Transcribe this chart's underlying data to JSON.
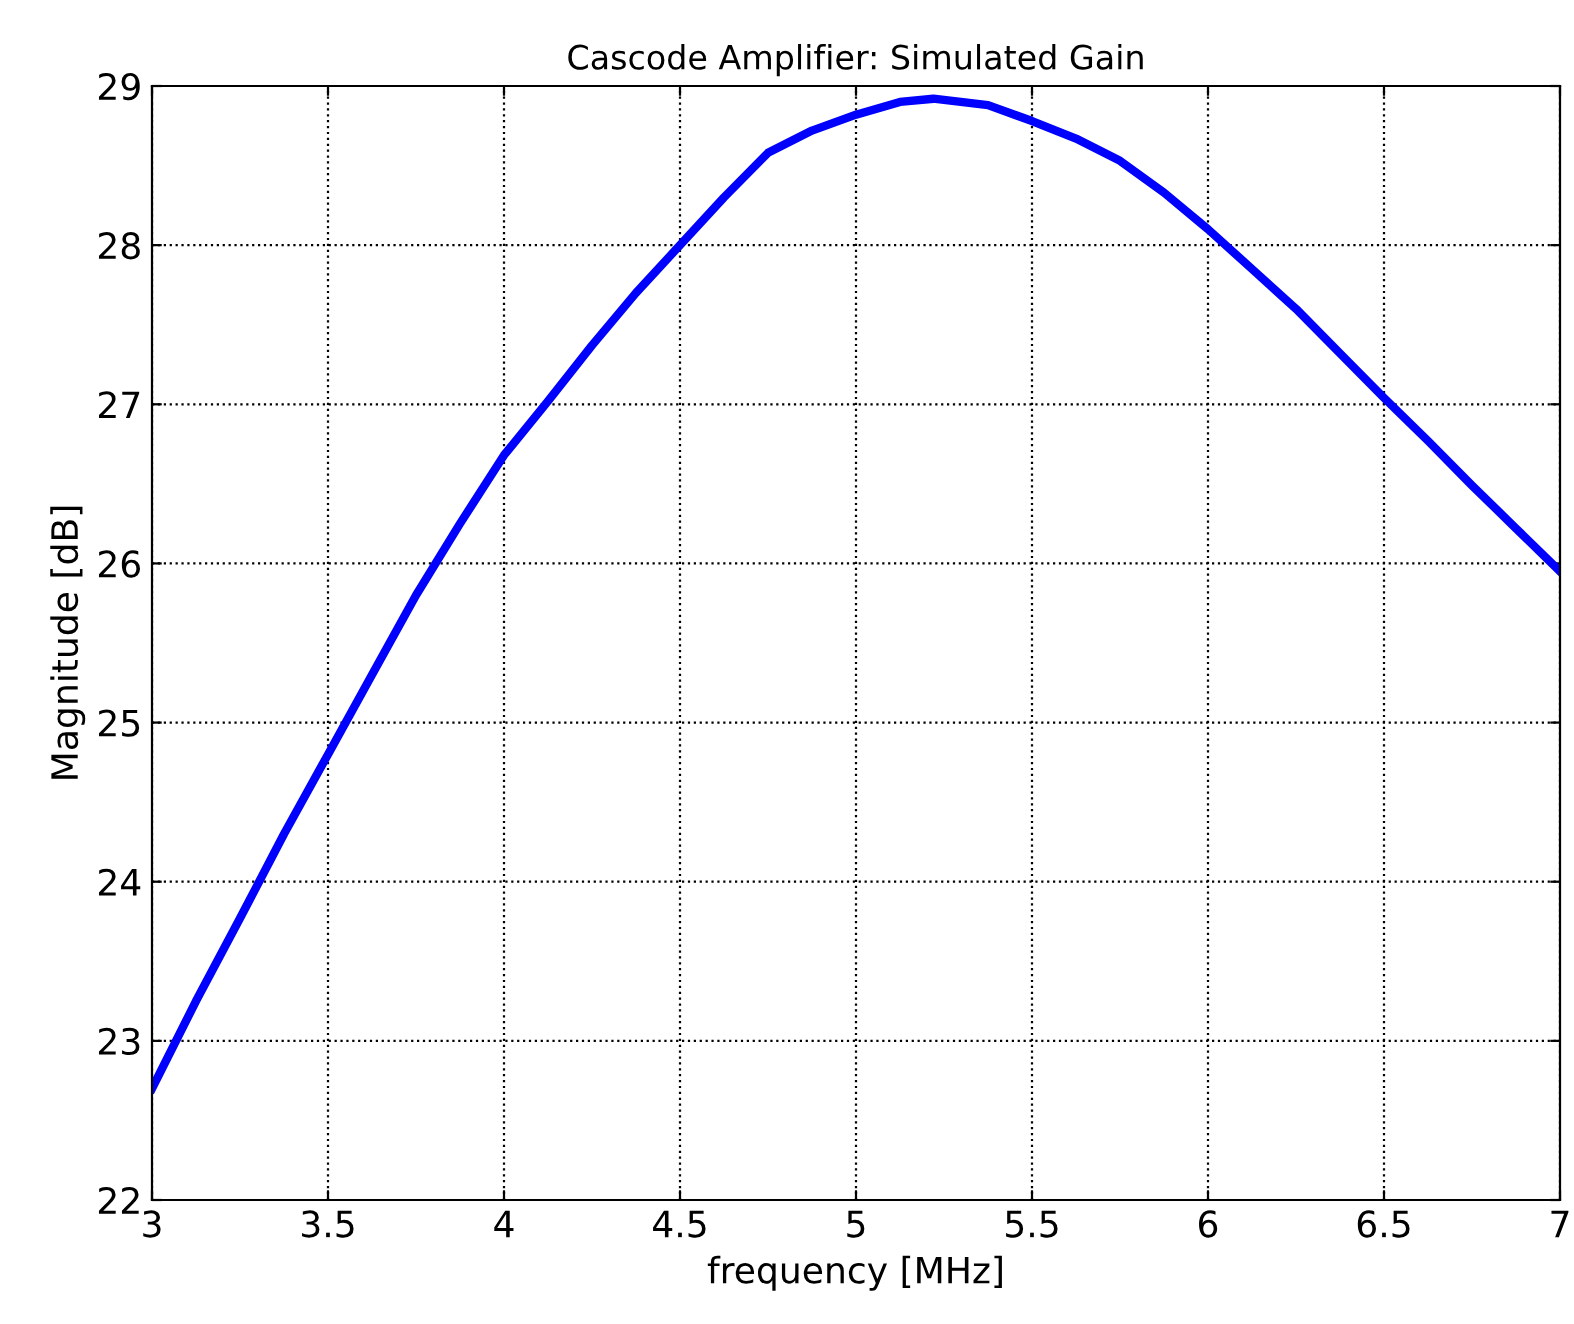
{
  "chart_data": {
    "type": "line",
    "title": "Cascode Amplifier: Simulated Gain",
    "xlabel": "frequency [MHz]",
    "ylabel": "Magnitude [dB]",
    "x": [
      3,
      3.125,
      3.25,
      3.375,
      3.5,
      3.625,
      3.75,
      3.875,
      4,
      4.125,
      4.25,
      4.375,
      4.5,
      4.625,
      4.75,
      4.875,
      5,
      5.125,
      5.22,
      5.375,
      5.5,
      5.625,
      5.75,
      5.875,
      6,
      6.125,
      6.25,
      6.375,
      6.5,
      6.625,
      6.75,
      6.875,
      7
    ],
    "series": [
      {
        "color": "#0000ff",
        "values": [
          22.7,
          23.25,
          23.77,
          24.3,
          24.8,
          25.3,
          25.8,
          26.25,
          26.68,
          27.02,
          27.37,
          27.7,
          28.0,
          28.3,
          28.58,
          28.72,
          28.82,
          28.9,
          28.92,
          28.88,
          28.78,
          28.67,
          28.53,
          28.33,
          28.1,
          27.85,
          27.6,
          27.32,
          27.04,
          26.77,
          26.49,
          26.22,
          25.95
        ]
      }
    ],
    "xlim": [
      3,
      7
    ],
    "xticks": [
      3,
      3.5,
      4,
      4.5,
      5,
      5.5,
      6,
      6.5,
      7
    ],
    "ylim": [
      22,
      29
    ],
    "yticks": [
      22,
      23,
      24,
      25,
      26,
      27,
      28,
      29
    ],
    "grid": true,
    "line_style": "solid",
    "marker": "none"
  }
}
